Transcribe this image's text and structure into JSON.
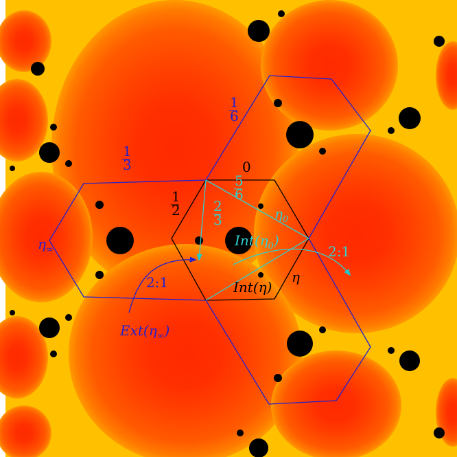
{
  "fractions": [
    {
      "numerator": "1",
      "denominator": "6"
    },
    {
      "numerator": "1",
      "denominator": "3"
    },
    {
      "numerator": "1",
      "denominator": "2"
    },
    {
      "numerator": "2",
      "denominator": "3"
    },
    {
      "numerator": "5",
      "denominator": "6"
    }
  ],
  "labels": {
    "zero": "0",
    "eta": "η",
    "eta0": {
      "base": "η",
      "sub": "0"
    },
    "eta_inf": {
      "base": "η",
      "sub": "∞"
    },
    "int_eta0": {
      "base": "Int(η",
      "sub": "0",
      "tail": ")"
    },
    "int_eta": "Int(η)",
    "ext_eta_inf": {
      "base": "Ext(η",
      "sub": "∞",
      "tail": ")"
    },
    "degree_left": "2:1",
    "degree_right": "2:1"
  }
}
